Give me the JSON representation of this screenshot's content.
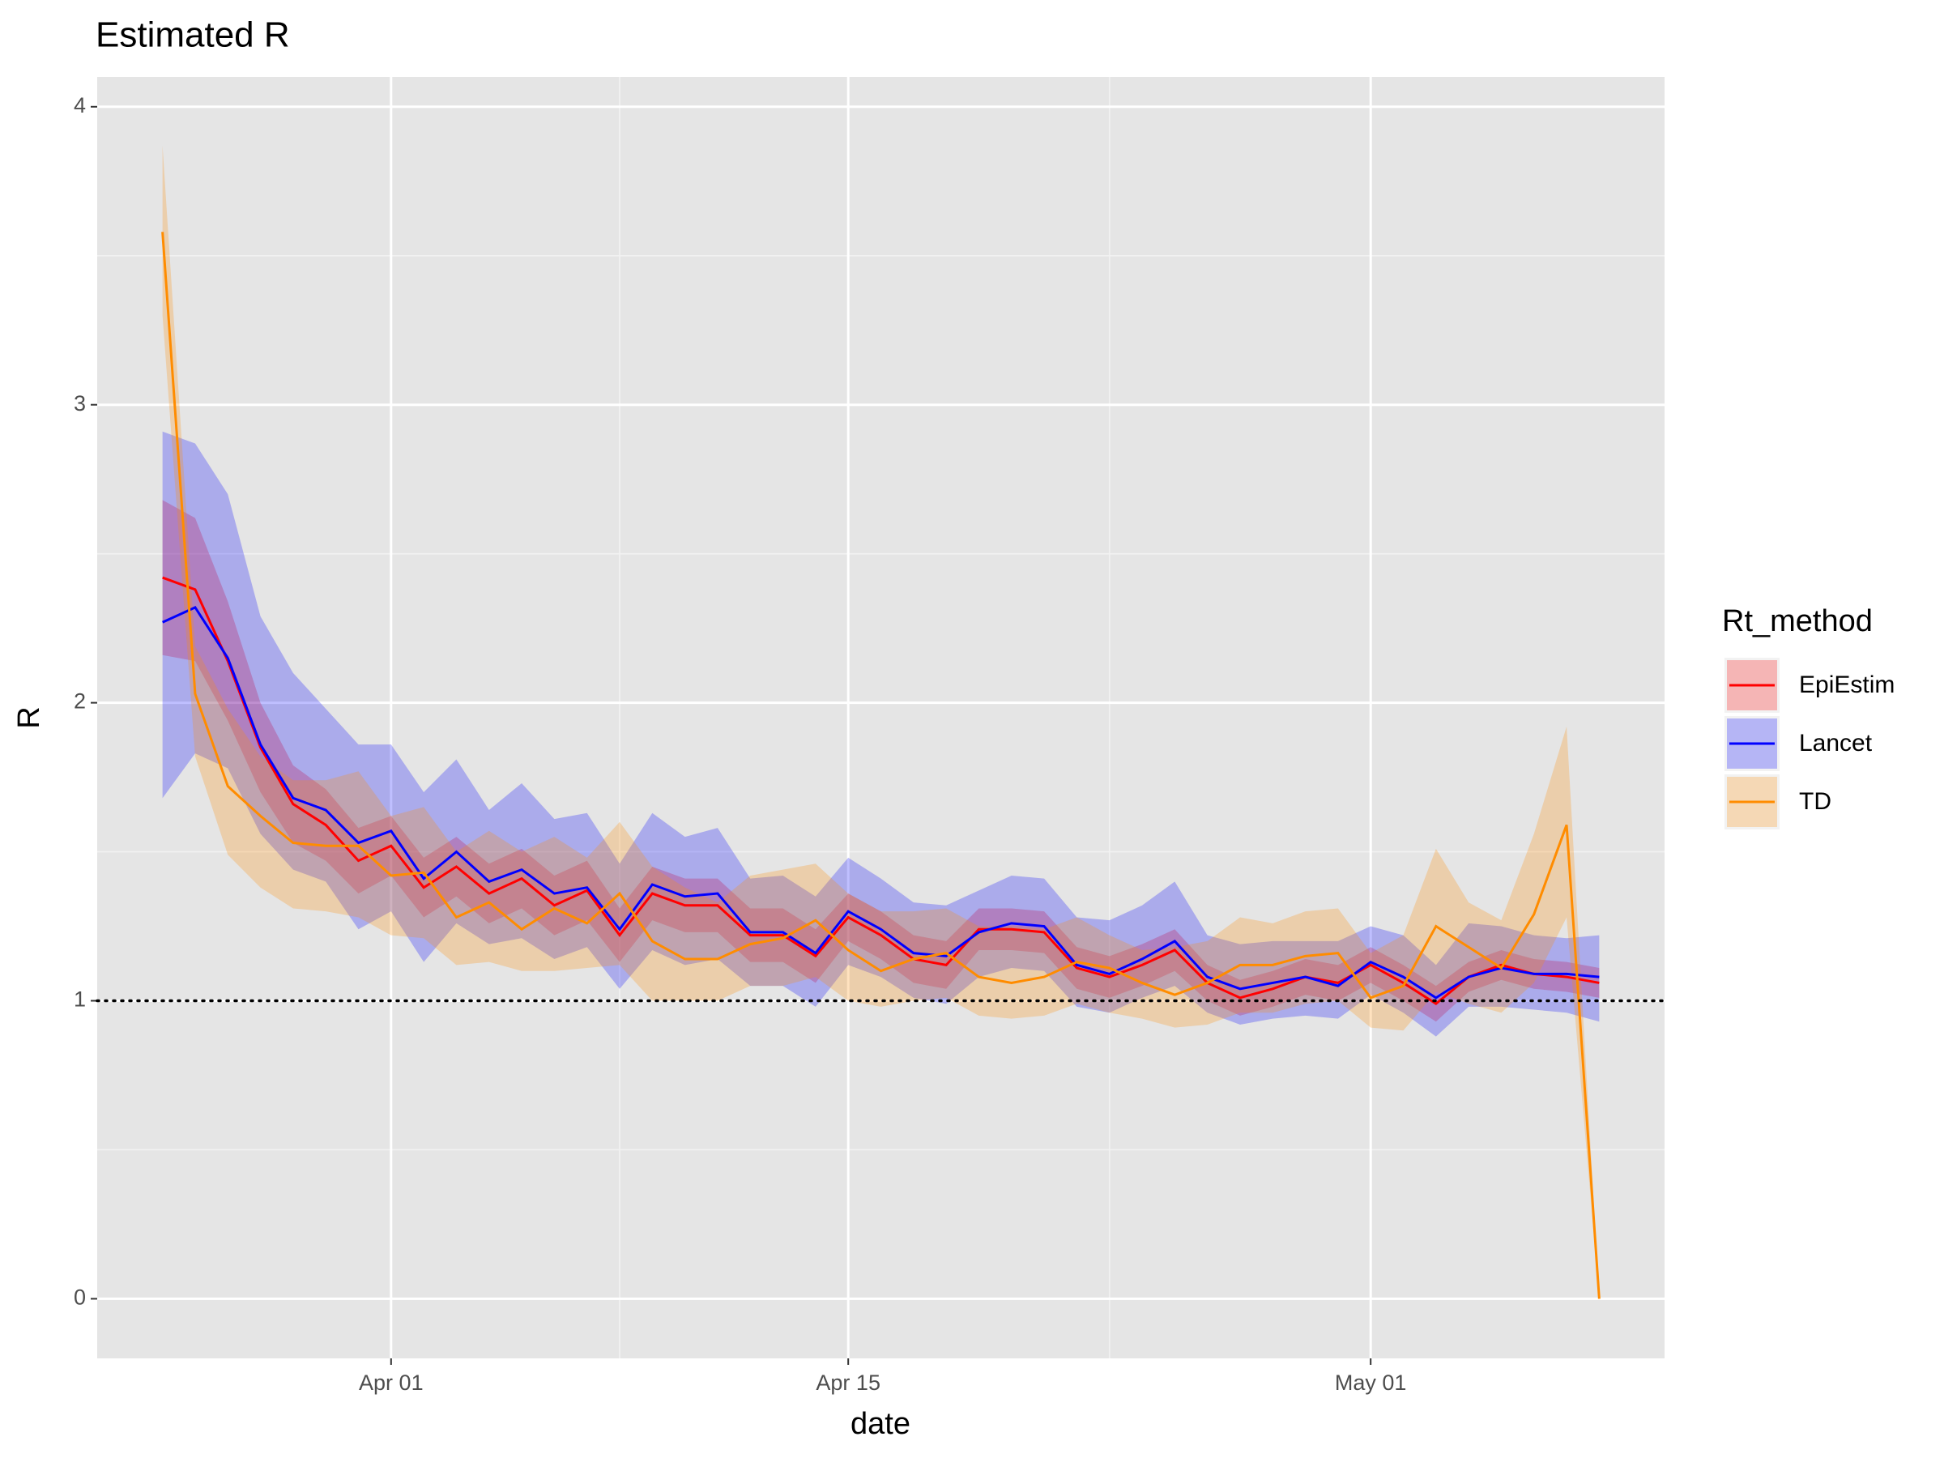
{
  "chart_data": {
    "type": "line",
    "title": "Estimated R",
    "xlabel": "date",
    "ylabel": "R",
    "legend_title": "Rt_method",
    "x": [
      "Mar 25",
      "Mar 26",
      "Mar 27",
      "Mar 28",
      "Mar 29",
      "Mar 30",
      "Mar 31",
      "Apr 01",
      "Apr 02",
      "Apr 03",
      "Apr 04",
      "Apr 05",
      "Apr 06",
      "Apr 07",
      "Apr 08",
      "Apr 09",
      "Apr 10",
      "Apr 11",
      "Apr 12",
      "Apr 13",
      "Apr 14",
      "Apr 15",
      "Apr 16",
      "Apr 17",
      "Apr 18",
      "Apr 19",
      "Apr 20",
      "Apr 21",
      "Apr 22",
      "Apr 23",
      "Apr 24",
      "Apr 25",
      "Apr 26",
      "Apr 27",
      "Apr 28",
      "Apr 29",
      "Apr 30",
      "May 01",
      "May 02",
      "May 03",
      "May 04",
      "May 05",
      "May 06",
      "May 07",
      "May 08"
    ],
    "xlim": [
      "Mar 23",
      "May 10"
    ],
    "xticks": [
      "Apr 01",
      "Apr 15",
      "May 01"
    ],
    "x_minor_ticks": [
      "Apr 08",
      "Apr 23"
    ],
    "ylim": [
      -0.2,
      4.1
    ],
    "yticks": [
      0,
      1,
      2,
      3,
      4
    ],
    "y_minor_ticks": [
      0.5,
      1.5,
      2.5,
      3.5
    ],
    "grid": true,
    "hline": 1,
    "legend": "right",
    "series": [
      {
        "name": "EpiEstim",
        "color": "#ff0000",
        "values": [
          2.42,
          2.38,
          2.14,
          1.85,
          1.66,
          1.59,
          1.47,
          1.52,
          1.38,
          1.45,
          1.36,
          1.41,
          1.32,
          1.37,
          1.22,
          1.36,
          1.32,
          1.32,
          1.22,
          1.22,
          1.15,
          1.28,
          1.22,
          1.14,
          1.12,
          1.24,
          1.24,
          1.23,
          1.11,
          1.08,
          1.12,
          1.17,
          1.06,
          1.01,
          1.04,
          1.08,
          1.06,
          1.12,
          1.06,
          0.99,
          1.08,
          1.12,
          1.09,
          1.08,
          1.06
        ],
        "upper": [
          2.68,
          2.62,
          2.34,
          2.0,
          1.79,
          1.71,
          1.58,
          1.62,
          1.48,
          1.55,
          1.46,
          1.51,
          1.42,
          1.47,
          1.31,
          1.45,
          1.41,
          1.41,
          1.31,
          1.31,
          1.24,
          1.36,
          1.3,
          1.22,
          1.2,
          1.31,
          1.31,
          1.3,
          1.18,
          1.15,
          1.19,
          1.24,
          1.12,
          1.07,
          1.1,
          1.14,
          1.12,
          1.18,
          1.12,
          1.05,
          1.13,
          1.17,
          1.14,
          1.13,
          1.11
        ],
        "lower": [
          2.16,
          2.14,
          1.94,
          1.7,
          1.53,
          1.47,
          1.36,
          1.42,
          1.28,
          1.35,
          1.26,
          1.31,
          1.22,
          1.27,
          1.13,
          1.27,
          1.23,
          1.23,
          1.13,
          1.13,
          1.06,
          1.2,
          1.14,
          1.06,
          1.04,
          1.17,
          1.17,
          1.16,
          1.04,
          1.01,
          1.05,
          1.1,
          1.0,
          0.95,
          0.98,
          1.02,
          1.0,
          1.06,
          1.0,
          0.93,
          1.03,
          1.07,
          1.04,
          1.03,
          1.01
        ]
      },
      {
        "name": "Lancet",
        "color": "#0000ff",
        "values": [
          2.27,
          2.32,
          2.15,
          1.86,
          1.68,
          1.64,
          1.53,
          1.57,
          1.41,
          1.5,
          1.4,
          1.44,
          1.36,
          1.38,
          1.24,
          1.39,
          1.35,
          1.36,
          1.23,
          1.23,
          1.16,
          1.3,
          1.24,
          1.16,
          1.15,
          1.23,
          1.26,
          1.25,
          1.12,
          1.09,
          1.14,
          1.2,
          1.08,
          1.04,
          1.06,
          1.08,
          1.05,
          1.13,
          1.08,
          1.01,
          1.08,
          1.11,
          1.09,
          1.09,
          1.08
        ],
        "upper": [
          2.91,
          2.87,
          2.7,
          2.29,
          2.1,
          1.98,
          1.86,
          1.86,
          1.7,
          1.81,
          1.64,
          1.73,
          1.61,
          1.63,
          1.46,
          1.63,
          1.55,
          1.58,
          1.41,
          1.42,
          1.35,
          1.48,
          1.41,
          1.33,
          1.32,
          1.37,
          1.42,
          1.41,
          1.28,
          1.27,
          1.32,
          1.4,
          1.22,
          1.19,
          1.2,
          1.2,
          1.2,
          1.25,
          1.22,
          1.12,
          1.26,
          1.25,
          1.22,
          1.21,
          1.22
        ],
        "lower": [
          1.68,
          1.83,
          1.78,
          1.56,
          1.44,
          1.4,
          1.24,
          1.3,
          1.13,
          1.26,
          1.19,
          1.21,
          1.14,
          1.18,
          1.04,
          1.17,
          1.12,
          1.14,
          1.05,
          1.05,
          0.98,
          1.12,
          1.08,
          1.01,
          0.99,
          1.08,
          1.11,
          1.1,
          0.98,
          0.96,
          1.01,
          1.05,
          0.96,
          0.92,
          0.94,
          0.95,
          0.94,
          1.02,
          0.96,
          0.88,
          0.98,
          0.98,
          0.97,
          0.96,
          0.93
        ]
      },
      {
        "name": "TD",
        "color": "#ff8c00",
        "values": [
          3.58,
          2.03,
          1.72,
          1.62,
          1.53,
          1.52,
          1.52,
          1.42,
          1.43,
          1.28,
          1.33,
          1.24,
          1.31,
          1.26,
          1.36,
          1.2,
          1.14,
          1.14,
          1.19,
          1.21,
          1.27,
          1.17,
          1.1,
          1.14,
          1.16,
          1.08,
          1.06,
          1.08,
          1.13,
          1.11,
          1.06,
          1.02,
          1.06,
          1.12,
          1.12,
          1.15,
          1.16,
          1.01,
          1.05,
          1.25,
          1.18,
          1.11,
          1.29,
          1.59,
          0
        ],
        "upper": [
          3.87,
          2.19,
          1.98,
          1.82,
          1.74,
          1.74,
          1.77,
          1.62,
          1.65,
          1.5,
          1.57,
          1.5,
          1.55,
          1.48,
          1.6,
          1.45,
          1.38,
          1.33,
          1.42,
          1.44,
          1.46,
          1.36,
          1.3,
          1.3,
          1.31,
          1.25,
          1.25,
          1.24,
          1.28,
          1.22,
          1.17,
          1.18,
          1.2,
          1.28,
          1.26,
          1.3,
          1.31,
          1.16,
          1.22,
          1.51,
          1.33,
          1.27,
          1.56,
          1.92,
          0
        ],
        "lower": [
          3.3,
          1.82,
          1.49,
          1.38,
          1.31,
          1.3,
          1.28,
          1.22,
          1.21,
          1.12,
          1.13,
          1.1,
          1.1,
          1.11,
          1.12,
          1.0,
          1.0,
          1.0,
          1.05,
          1.05,
          1.08,
          1.0,
          0.98,
          1.0,
          1.01,
          0.95,
          0.94,
          0.95,
          0.99,
          0.96,
          0.94,
          0.91,
          0.92,
          0.96,
          0.96,
          0.99,
          1.0,
          0.91,
          0.9,
          1.03,
          0.99,
          0.96,
          1.06,
          1.28,
          0
        ]
      }
    ]
  }
}
